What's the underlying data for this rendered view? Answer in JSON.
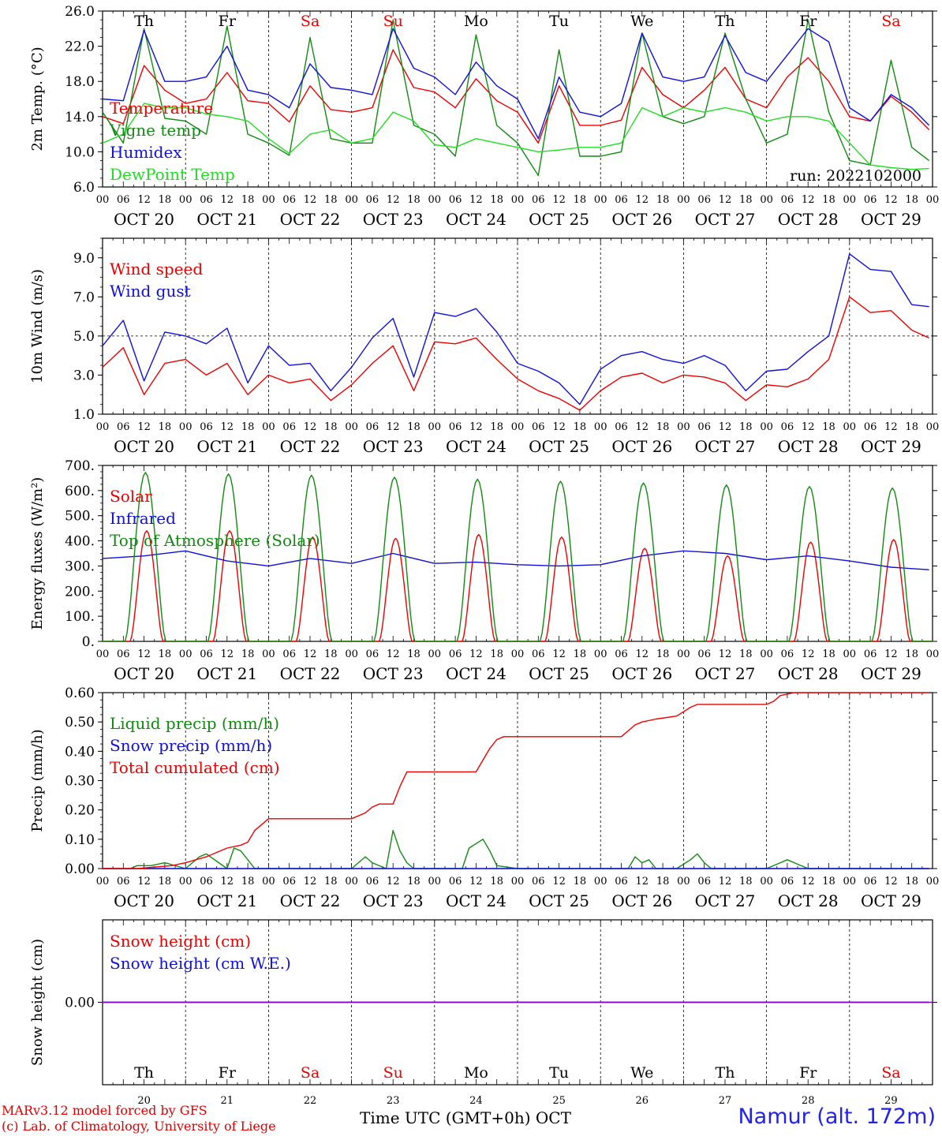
{
  "days": [
    "20",
    "21",
    "22",
    "23",
    "24",
    "25",
    "26",
    "27",
    "28",
    "29"
  ],
  "month": "OCT",
  "weekdays": [
    "Th",
    "Fr",
    "Sa",
    "Su",
    "Mo",
    "Tu",
    "We",
    "Th",
    "Fr",
    "Sa"
  ],
  "weekend_flags": [
    false,
    false,
    true,
    true,
    false,
    false,
    false,
    false,
    false,
    true
  ],
  "hour_ticks": [
    "00",
    "06",
    "12",
    "18"
  ],
  "end_tick": "00",
  "colors": {
    "red": "#ee0000",
    "green": "#128a12",
    "blue": "#1010dd",
    "lightgreen": "#22dd22",
    "purple": "#8800cc"
  },
  "run_label": "run: 2022102000",
  "footer": {
    "credit1": "MARv3.12 model forced by GFS",
    "credit2": "(c) Lab. of Climatology, University of Liege",
    "xlabel": "Time UTC (GMT+0h) OCT",
    "station": "Namur (alt. 172m)"
  },
  "chart_data": [
    {
      "type": "line",
      "ylabel": "2m Temp. (°C)",
      "ylim": [
        6.0,
        26.0
      ],
      "yticks": [
        "6.0",
        "10.0",
        "14.0",
        "18.0",
        "22.0",
        "26.0"
      ],
      "series": [
        {
          "name": "Temperature",
          "color": "red",
          "x": [
            0,
            6,
            12,
            18,
            24,
            30,
            36,
            42,
            48,
            54,
            60,
            66,
            72,
            78,
            84,
            90,
            96,
            102,
            108,
            114,
            120,
            126,
            132,
            138,
            144,
            150,
            156,
            162,
            168,
            174,
            180,
            186,
            192,
            198,
            204,
            210,
            216,
            222,
            228,
            234,
            239
          ],
          "values": [
            14.0,
            13.2,
            19.8,
            17.0,
            15.5,
            16.0,
            19.0,
            15.8,
            15.5,
            13.4,
            17.5,
            14.8,
            14.5,
            15.0,
            21.6,
            17.3,
            16.8,
            15.0,
            18.3,
            15.8,
            14.5,
            11.0,
            17.5,
            13.0,
            13.0,
            13.6,
            19.6,
            16.5,
            15.0,
            17.0,
            19.6,
            16.0,
            15.0,
            18.5,
            20.7,
            18.0,
            14.0,
            13.5,
            16.3,
            14.5,
            12.5
          ]
        },
        {
          "name": "Vigne temp",
          "color": "green",
          "x": [
            0,
            6,
            12,
            18,
            24,
            30,
            36,
            42,
            48,
            54,
            60,
            66,
            72,
            78,
            84,
            90,
            96,
            102,
            108,
            114,
            120,
            126,
            132,
            138,
            144,
            150,
            156,
            162,
            168,
            174,
            180,
            186,
            192,
            198,
            204,
            210,
            216,
            222,
            228,
            234,
            239
          ],
          "values": [
            14.5,
            11.0,
            24.0,
            13.8,
            13.5,
            12.0,
            24.3,
            12.0,
            11.0,
            9.6,
            23.0,
            11.5,
            11.0,
            11.0,
            25.0,
            13.0,
            12.0,
            9.5,
            23.3,
            13.0,
            11.0,
            7.3,
            21.6,
            9.5,
            9.5,
            10.0,
            23.5,
            14.0,
            13.2,
            14.0,
            23.5,
            16.0,
            11.0,
            12.0,
            25.0,
            14.5,
            9.0,
            8.5,
            20.4,
            10.5,
            9.0
          ]
        },
        {
          "name": "Humidex",
          "color": "blue",
          "x": [
            0,
            6,
            12,
            18,
            24,
            30,
            36,
            42,
            48,
            54,
            60,
            66,
            72,
            78,
            84,
            90,
            96,
            102,
            108,
            114,
            120,
            126,
            132,
            138,
            144,
            150,
            156,
            162,
            168,
            174,
            180,
            186,
            192,
            198,
            204,
            210,
            216,
            222,
            228,
            234,
            239
          ],
          "values": [
            16.0,
            15.8,
            23.8,
            18.0,
            18.0,
            18.5,
            22.0,
            17.0,
            16.5,
            15.0,
            20.0,
            17.3,
            17.0,
            16.5,
            24.0,
            19.5,
            18.5,
            16.5,
            20.2,
            17.5,
            16.0,
            11.5,
            18.5,
            14.5,
            14.0,
            15.5,
            23.5,
            18.5,
            18.0,
            18.5,
            23.2,
            19.0,
            18.0,
            21.0,
            24.0,
            22.5,
            15.0,
            13.5,
            16.5,
            15.0,
            13.0
          ]
        },
        {
          "name": "DewPoint Temp",
          "color": "lightgreen",
          "x": [
            0,
            6,
            12,
            18,
            24,
            30,
            36,
            42,
            48,
            54,
            60,
            66,
            72,
            78,
            84,
            90,
            96,
            102,
            108,
            114,
            120,
            126,
            132,
            138,
            144,
            150,
            156,
            162,
            168,
            174,
            180,
            186,
            192,
            198,
            204,
            210,
            216,
            222,
            228,
            234,
            239
          ],
          "values": [
            11.0,
            12.0,
            15.5,
            15.0,
            15.0,
            14.3,
            14.0,
            13.5,
            11.5,
            9.8,
            12.0,
            12.5,
            11.0,
            11.5,
            14.5,
            13.5,
            10.8,
            10.5,
            11.5,
            11.0,
            10.5,
            10.0,
            10.2,
            10.5,
            10.5,
            11.0,
            15.0,
            14.0,
            15.0,
            14.5,
            15.0,
            14.5,
            13.5,
            14.0,
            14.0,
            13.5,
            11.0,
            8.5,
            8.2,
            8.0,
            8.1
          ]
        }
      ]
    },
    {
      "type": "line",
      "ylabel": "10m Wind (m/s)",
      "ylim": [
        1.0,
        10.0
      ],
      "yticks": [
        "1.0",
        "3.0",
        "5.0",
        "7.0",
        "9.0"
      ],
      "series": [
        {
          "name": "Wind speed",
          "color": "red",
          "x": [
            0,
            6,
            12,
            18,
            24,
            30,
            36,
            42,
            48,
            54,
            60,
            66,
            72,
            78,
            84,
            90,
            96,
            102,
            108,
            114,
            120,
            126,
            132,
            138,
            144,
            150,
            156,
            162,
            168,
            174,
            180,
            186,
            192,
            198,
            204,
            210,
            216,
            222,
            228,
            234,
            239
          ],
          "values": [
            3.4,
            4.4,
            2.0,
            3.6,
            3.8,
            3.0,
            3.6,
            2.0,
            3.0,
            2.6,
            2.8,
            1.7,
            2.5,
            3.6,
            4.5,
            2.2,
            4.7,
            4.6,
            4.9,
            3.8,
            2.8,
            2.2,
            1.8,
            1.2,
            2.2,
            2.9,
            3.1,
            2.6,
            3.0,
            2.9,
            2.6,
            1.7,
            2.5,
            2.4,
            2.8,
            3.8,
            7.0,
            6.2,
            6.3,
            5.3,
            4.9
          ]
        },
        {
          "name": "Wind gust",
          "color": "blue",
          "x": [
            0,
            6,
            12,
            18,
            24,
            30,
            36,
            42,
            48,
            54,
            60,
            66,
            72,
            78,
            84,
            90,
            96,
            102,
            108,
            114,
            120,
            126,
            132,
            138,
            144,
            150,
            156,
            162,
            168,
            174,
            180,
            186,
            192,
            198,
            204,
            210,
            216,
            222,
            228,
            234,
            239
          ],
          "values": [
            4.5,
            5.8,
            2.7,
            5.2,
            5.0,
            4.6,
            5.4,
            2.6,
            4.5,
            3.5,
            3.6,
            2.2,
            3.4,
            4.9,
            5.9,
            2.9,
            6.2,
            6.0,
            6.4,
            5.2,
            3.6,
            3.2,
            2.6,
            1.5,
            3.3,
            4.0,
            4.2,
            3.8,
            3.6,
            4.0,
            3.5,
            2.2,
            3.2,
            3.3,
            4.2,
            5.0,
            9.2,
            8.4,
            8.3,
            6.6,
            6.5
          ]
        }
      ]
    },
    {
      "type": "line",
      "ylabel": "Energy fluxes (W/m²)",
      "ylim": [
        0,
        700
      ],
      "yticks": [
        "0.",
        "100.",
        "200.",
        "300.",
        "400.",
        "500.",
        "600.",
        "700."
      ],
      "series": [
        {
          "name": "Solar",
          "color": "red",
          "diurnal": true,
          "peaks": [
            440,
            440,
            415,
            410,
            425,
            415,
            370,
            340,
            395,
            405
          ]
        },
        {
          "name": "Infrared",
          "color": "blue",
          "x": [
            0,
            12,
            24,
            36,
            48,
            60,
            72,
            84,
            96,
            108,
            120,
            132,
            144,
            156,
            168,
            180,
            192,
            204,
            216,
            228,
            239
          ],
          "values": [
            330,
            340,
            360,
            320,
            300,
            330,
            310,
            350,
            310,
            315,
            305,
            300,
            305,
            340,
            360,
            350,
            325,
            340,
            320,
            295,
            285
          ]
        },
        {
          "name": "Top of Atmosphere (Solar)",
          "color": "green",
          "diurnal": true,
          "peaks": [
            672,
            666,
            661,
            653,
            645,
            637,
            630,
            622,
            616,
            610
          ]
        }
      ]
    },
    {
      "type": "line",
      "ylabel": "Precip (mm/h)",
      "ylim": [
        0.0,
        0.6
      ],
      "yticks": [
        "0.00",
        "0.10",
        "0.20",
        "0.30",
        "0.40",
        "0.50",
        "0.60"
      ],
      "series": [
        {
          "name": "Liquid precip (mm/h)",
          "color": "green",
          "x": [
            0,
            8,
            10,
            14,
            18,
            24,
            28,
            30,
            36,
            38,
            40,
            44,
            48,
            72,
            76,
            78,
            82,
            84,
            86,
            88,
            90,
            92,
            96,
            104,
            106,
            110,
            112,
            114,
            120,
            152,
            154,
            156,
            158,
            160,
            166,
            170,
            172,
            174,
            176,
            192,
            196,
            198,
            200,
            204,
            239
          ],
          "values": [
            0,
            0,
            0.01,
            0.01,
            0.02,
            0.0,
            0.04,
            0.05,
            0.0,
            0.07,
            0.06,
            0.0,
            0.0,
            0.0,
            0.04,
            0.02,
            0.0,
            0.13,
            0.06,
            0.02,
            0.0,
            0.0,
            0.0,
            0.0,
            0.07,
            0.1,
            0.06,
            0.01,
            0.0,
            0.0,
            0.04,
            0.02,
            0.03,
            0.0,
            0.0,
            0.03,
            0.05,
            0.02,
            0.0,
            0.0,
            0.02,
            0.03,
            0.02,
            0.0,
            0.0
          ]
        },
        {
          "name": "Snow precip (mm/h)",
          "color": "blue",
          "x": [
            0,
            239
          ],
          "values": [
            0,
            0
          ]
        },
        {
          "name": "Total cumulated (cm)",
          "color": "red",
          "x": [
            0,
            10,
            20,
            24,
            30,
            36,
            40,
            42,
            44,
            48,
            72,
            76,
            78,
            80,
            84,
            86,
            88,
            90,
            96,
            108,
            112,
            114,
            116,
            120,
            144,
            150,
            154,
            156,
            160,
            166,
            170,
            172,
            192,
            194,
            196,
            200,
            239
          ],
          "values": [
            0,
            0,
            0.01,
            0.02,
            0.04,
            0.07,
            0.08,
            0.09,
            0.13,
            0.17,
            0.17,
            0.19,
            0.21,
            0.22,
            0.22,
            0.28,
            0.33,
            0.33,
            0.33,
            0.33,
            0.41,
            0.44,
            0.45,
            0.45,
            0.45,
            0.45,
            0.49,
            0.5,
            0.51,
            0.52,
            0.55,
            0.56,
            0.56,
            0.57,
            0.59,
            0.6,
            0.6
          ]
        }
      ]
    },
    {
      "type": "line",
      "ylabel": "Snow height (cm)",
      "ylim": [
        -0.5,
        0.5
      ],
      "yticks": [
        "0.00"
      ],
      "series": [
        {
          "name": "Snow height (cm)",
          "color": "red",
          "x": [
            0,
            239
          ],
          "values": [
            0,
            0
          ]
        },
        {
          "name": "Snow height (cm W.E.)",
          "color": "blue",
          "x": [
            0,
            239
          ],
          "values": [
            0,
            0
          ]
        }
      ]
    }
  ]
}
